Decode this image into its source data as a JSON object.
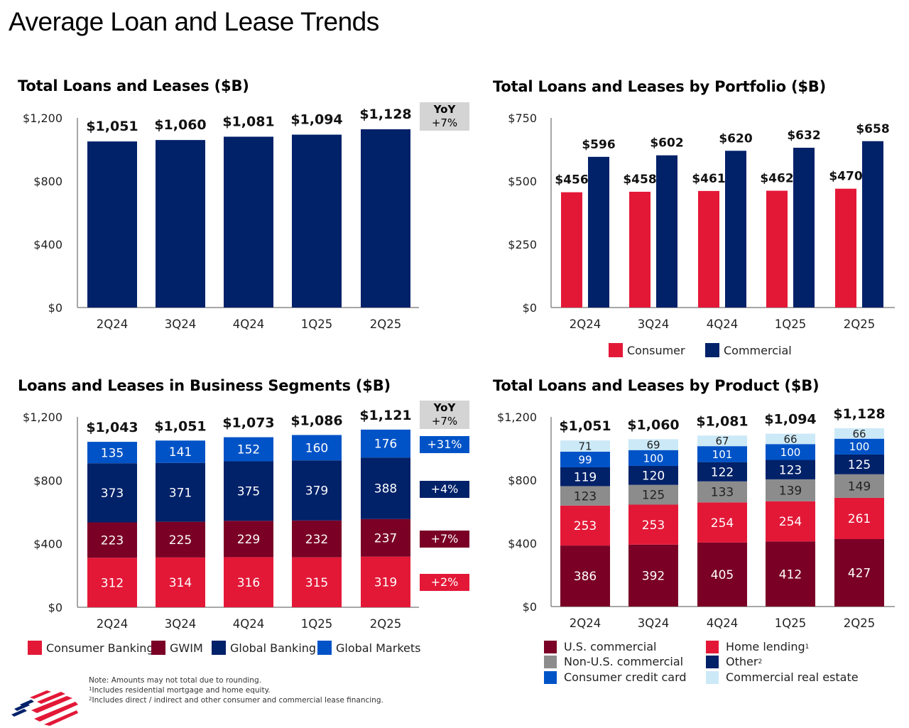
{
  "page_title": "Average Loan and Lease Trends",
  "colors": {
    "navy": "#012169",
    "red": "#e31837",
    "maroon": "#7a0026",
    "blue": "#0053c7",
    "gray": "#8c8c8c",
    "light_blue": "#cce9f7",
    "yoy_gray": "#d4d4d4"
  },
  "chart_data": [
    {
      "id": "total",
      "type": "bar",
      "title": "Total Loans and Leases ($B)",
      "categories": [
        "2Q24",
        "3Q24",
        "4Q24",
        "1Q25",
        "2Q25"
      ],
      "values": [
        1051,
        1060,
        1081,
        1094,
        1128
      ],
      "data_labels": [
        "$1,051",
        "$1,060",
        "$1,081",
        "$1,094",
        "$1,128"
      ],
      "ylim": [
        0,
        1200
      ],
      "yticks": [
        0,
        400,
        800,
        1200
      ],
      "ytick_labels": [
        "$0",
        "$400",
        "$800",
        "$1,200"
      ],
      "yoy": {
        "label": "YoY",
        "value": "+7%"
      },
      "grid": false
    },
    {
      "id": "portfolio",
      "type": "bar",
      "title": "Total Loans and Leases by Portfolio ($B)",
      "categories": [
        "2Q24",
        "3Q24",
        "4Q24",
        "1Q25",
        "2Q25"
      ],
      "series": [
        {
          "name": "Consumer",
          "color": "#e31837",
          "values": [
            456,
            458,
            461,
            462,
            470
          ],
          "data_labels": [
            "$456",
            "$458",
            "$461",
            "$462",
            "$470"
          ]
        },
        {
          "name": "Commercial",
          "color": "#012169",
          "values": [
            596,
            602,
            620,
            632,
            658
          ],
          "data_labels": [
            "$596",
            "$602",
            "$620",
            "$632",
            "$658"
          ]
        }
      ],
      "ylim": [
        0,
        750
      ],
      "yticks": [
        0,
        250,
        500,
        750
      ],
      "ytick_labels": [
        "$0",
        "$250",
        "$500",
        "$750"
      ],
      "legend": "bottom",
      "grid": false
    },
    {
      "id": "segments",
      "type": "bar",
      "stacked": true,
      "title": "Loans and Leases in Business Segments ($B)",
      "categories": [
        "2Q24",
        "3Q24",
        "4Q24",
        "1Q25",
        "2Q25"
      ],
      "totals": [
        1043,
        1051,
        1073,
        1086,
        1121
      ],
      "total_labels": [
        "$1,043",
        "$1,051",
        "$1,073",
        "$1,086",
        "$1,121"
      ],
      "series": [
        {
          "name": "Consumer Banking",
          "color": "#e31837",
          "values": [
            312,
            314,
            316,
            315,
            319
          ],
          "yoy": "+2%"
        },
        {
          "name": "GWIM",
          "color": "#7a0026",
          "values": [
            223,
            225,
            229,
            232,
            237
          ],
          "yoy": "+7%"
        },
        {
          "name": "Global Banking",
          "color": "#012169",
          "values": [
            373,
            371,
            375,
            379,
            388
          ],
          "yoy": "+4%"
        },
        {
          "name": "Global Markets",
          "color": "#0053c7",
          "values": [
            135,
            141,
            152,
            160,
            176
          ],
          "yoy": "+31%"
        }
      ],
      "ylim": [
        0,
        1200
      ],
      "yticks": [
        0,
        400,
        800,
        1200
      ],
      "ytick_labels": [
        "$0",
        "$400",
        "$800",
        "$1,200"
      ],
      "yoy": {
        "label": "YoY",
        "value": "+7%"
      },
      "legend": "bottom",
      "grid": false
    },
    {
      "id": "product",
      "type": "bar",
      "stacked": true,
      "title": "Total Loans and Leases by Product ($B)",
      "categories": [
        "2Q24",
        "3Q24",
        "4Q24",
        "1Q25",
        "2Q25"
      ],
      "totals": [
        1051,
        1060,
        1081,
        1094,
        1128
      ],
      "total_labels": [
        "$1,051",
        "$1,060",
        "$1,081",
        "$1,094",
        "$1,128"
      ],
      "series": [
        {
          "name": "U.S. commercial",
          "color": "#7a0026",
          "values": [
            386,
            392,
            405,
            412,
            427
          ]
        },
        {
          "name": "Home lending",
          "footnote": "1",
          "color": "#e31837",
          "values": [
            253,
            253,
            254,
            254,
            261
          ]
        },
        {
          "name": "Non-U.S. commercial",
          "color": "#8c8c8c",
          "values": [
            123,
            125,
            133,
            139,
            149
          ],
          "dark_text": true
        },
        {
          "name": "Other",
          "footnote": "2",
          "color": "#012169",
          "values": [
            119,
            120,
            122,
            123,
            125
          ]
        },
        {
          "name": "Consumer credit card",
          "color": "#0053c7",
          "values": [
            99,
            100,
            101,
            100,
            100
          ]
        },
        {
          "name": "Commercial real estate",
          "color": "#cce9f7",
          "values": [
            71,
            69,
            67,
            66,
            66
          ],
          "dark_text": true
        }
      ],
      "ylim": [
        0,
        1200
      ],
      "yticks": [
        0,
        400,
        800,
        1200
      ],
      "ytick_labels": [
        "$0",
        "$400",
        "$800",
        "$1,200"
      ],
      "legend": "bottom",
      "grid": false
    }
  ],
  "notes": {
    "line1": "Note: Amounts may not total due to rounding.",
    "fn1_mark": "1",
    "fn1": "Includes residential mortgage and home equity.",
    "fn2_mark": "2",
    "fn2": "Includes direct / indirect and other consumer and commercial lease financing."
  },
  "logo": {
    "name": "bank-flag-logo"
  }
}
